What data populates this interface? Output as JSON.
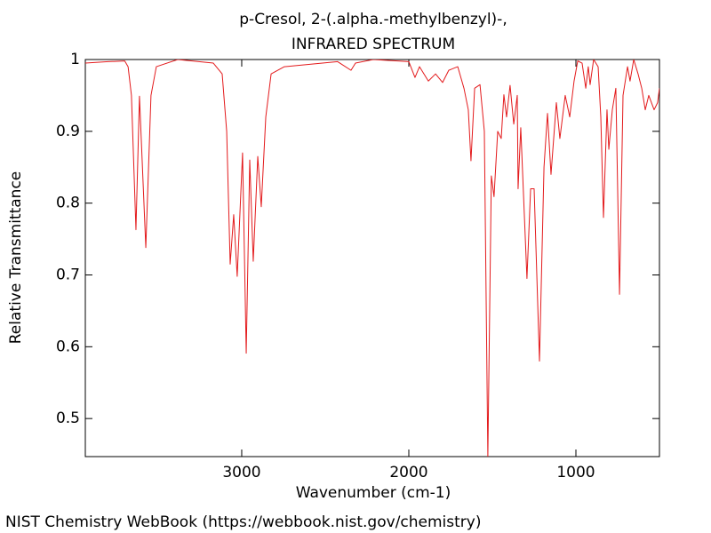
{
  "chart_data": {
    "type": "line",
    "title": "p-Cresol, 2-(.alpha.-methylbenzyl)-,",
    "subtitle": "INFRARED SPECTRUM",
    "x_label": "Wavenumber (cm-1)",
    "y_label": "Relative Transmittance",
    "source": "NIST Chemistry WebBook (https://webbook.nist.gov/chemistry)",
    "color": "#e31a1c",
    "xlim": [
      3936,
      500
    ],
    "ylim": [
      0.447,
      1
    ],
    "xticks": [
      3000,
      2000,
      1000
    ],
    "yticks": [
      0.5,
      0.6,
      0.7,
      0.8,
      0.9,
      1
    ],
    "x": [
      3936,
      3800,
      3700,
      3680,
      3660,
      3633,
      3612,
      3574,
      3543,
      3511,
      3383,
      3170,
      3117,
      3090,
      3069,
      3048,
      3027,
      2995,
      2973,
      2952,
      2931,
      2904,
      2883,
      2856,
      2824,
      2745,
      2426,
      2346,
      2319,
      2213,
      2000,
      1963,
      1936,
      1883,
      1840,
      1798,
      1761,
      1707,
      1670,
      1644,
      1628,
      1606,
      1574,
      1548,
      1527,
      1506,
      1490,
      1468,
      1447,
      1431,
      1415,
      1394,
      1372,
      1351,
      1346,
      1330,
      1293,
      1271,
      1250,
      1218,
      1191,
      1170,
      1149,
      1117,
      1096,
      1064,
      1037,
      1011,
      989,
      963,
      941,
      926,
      915,
      894,
      867,
      851,
      835,
      814,
      803,
      782,
      761,
      739,
      718,
      691,
      676,
      654,
      628,
      606,
      585,
      564,
      532,
      511,
      500
    ],
    "values": [
      0.995,
      0.997,
      0.998,
      0.99,
      0.95,
      0.763,
      0.949,
      0.738,
      0.95,
      0.99,
      1.0,
      0.995,
      0.98,
      0.9,
      0.715,
      0.784,
      0.698,
      0.87,
      0.591,
      0.86,
      0.719,
      0.865,
      0.795,
      0.92,
      0.98,
      0.99,
      0.997,
      0.985,
      0.995,
      1.0,
      0.997,
      0.975,
      0.99,
      0.97,
      0.98,
      0.968,
      0.985,
      0.99,
      0.96,
      0.93,
      0.859,
      0.96,
      0.965,
      0.9,
      0.447,
      0.838,
      0.809,
      0.9,
      0.89,
      0.951,
      0.92,
      0.964,
      0.91,
      0.95,
      0.82,
      0.905,
      0.695,
      0.82,
      0.82,
      0.58,
      0.85,
      0.925,
      0.84,
      0.94,
      0.89,
      0.95,
      0.92,
      0.97,
      0.998,
      0.995,
      0.96,
      0.99,
      0.965,
      1.0,
      0.99,
      0.92,
      0.78,
      0.93,
      0.875,
      0.93,
      0.96,
      0.673,
      0.95,
      0.99,
      0.97,
      1.0,
      0.98,
      0.96,
      0.93,
      0.95,
      0.93,
      0.94,
      0.96
    ]
  }
}
